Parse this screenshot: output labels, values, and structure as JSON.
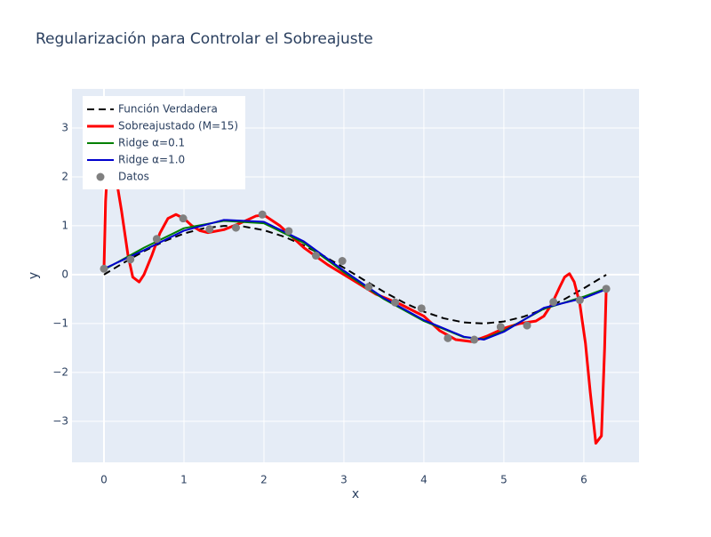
{
  "chart_data": {
    "type": "line",
    "title": "Regularización para Controlar el Sobreajuste",
    "xlabel": "x",
    "ylabel": "y",
    "xlim": [
      -0.4,
      6.69
    ],
    "ylim": [
      -3.84,
      3.8
    ],
    "xticks": [
      0,
      1,
      2,
      3,
      4,
      5,
      6
    ],
    "yticks": [
      {
        "value": -3,
        "label": "−3"
      },
      {
        "value": -2,
        "label": "−2"
      },
      {
        "value": -1,
        "label": "−1"
      },
      0,
      1,
      2,
      3
    ],
    "grid": true,
    "legend": "top-left",
    "series": [
      {
        "name": "Función Verdadera",
        "color": "#000000",
        "dash": true,
        "x": [
          0,
          0.25,
          0.5,
          0.75,
          1,
          1.25,
          1.5,
          1.75,
          2,
          2.25,
          2.5,
          2.75,
          3,
          3.25,
          3.5,
          3.75,
          4,
          4.25,
          4.5,
          4.75,
          5,
          5.25,
          5.5,
          5.75,
          6,
          6.25,
          6.28
        ],
        "values": [
          0,
          0.247,
          0.479,
          0.682,
          0.841,
          0.949,
          0.997,
          0.984,
          0.909,
          0.778,
          0.598,
          0.381,
          0.141,
          -0.108,
          -0.351,
          -0.572,
          -0.757,
          -0.894,
          -0.978,
          -0.999,
          -0.959,
          -0.859,
          -0.706,
          -0.51,
          -0.279,
          -0.033,
          -0.003
        ]
      },
      {
        "name": "Sobreajustado (M=15)",
        "color": "#ff0000",
        "width": 3,
        "x": [
          0,
          0.02,
          0.05,
          0.08,
          0.12,
          0.17,
          0.22,
          0.3,
          0.36,
          0.44,
          0.5,
          0.6,
          0.7,
          0.8,
          0.9,
          1.0,
          1.1,
          1.2,
          1.3,
          1.5,
          1.7,
          1.9,
          2.0,
          2.2,
          2.5,
          2.8,
          3.1,
          3.4,
          3.7,
          4.0,
          4.2,
          4.4,
          4.6,
          4.8,
          5.0,
          5.2,
          5.4,
          5.5,
          5.6,
          5.7,
          5.76,
          5.82,
          5.88,
          5.95,
          6.02,
          6.08,
          6.15,
          6.22,
          6.26,
          6.28
        ],
        "values": [
          0.1,
          1.5,
          2.4,
          2.6,
          2.3,
          1.8,
          1.3,
          0.4,
          -0.05,
          -0.15,
          0.0,
          0.4,
          0.85,
          1.15,
          1.23,
          1.15,
          1.0,
          0.9,
          0.86,
          0.92,
          1.05,
          1.2,
          1.22,
          1.0,
          0.55,
          0.2,
          -0.1,
          -0.4,
          -0.6,
          -0.85,
          -1.15,
          -1.33,
          -1.37,
          -1.25,
          -1.1,
          -1.0,
          -0.95,
          -0.85,
          -0.6,
          -0.25,
          -0.05,
          0.02,
          -0.15,
          -0.6,
          -1.4,
          -2.4,
          -3.45,
          -3.3,
          -1.5,
          -0.28
        ]
      },
      {
        "name": "Ridge α=0.1",
        "color": "#008000",
        "x": [
          0,
          0.5,
          1.0,
          1.5,
          2.0,
          2.5,
          3.0,
          3.5,
          4.0,
          4.5,
          4.75,
          5.0,
          5.5,
          6.0,
          6.28
        ],
        "values": [
          0.1,
          0.55,
          0.95,
          1.1,
          1.05,
          0.65,
          0.05,
          -0.5,
          -0.95,
          -1.28,
          -1.32,
          -1.15,
          -0.7,
          -0.45,
          -0.28
        ]
      },
      {
        "name": "Ridge α=1.0",
        "color": "#0000cd",
        "x": [
          0,
          0.5,
          1.0,
          1.5,
          2.0,
          2.5,
          3.0,
          3.5,
          4.0,
          4.5,
          4.75,
          5.0,
          5.5,
          6.0,
          6.28
        ],
        "values": [
          0.12,
          0.5,
          0.9,
          1.12,
          1.08,
          0.68,
          0.08,
          -0.48,
          -0.93,
          -1.27,
          -1.33,
          -1.17,
          -0.68,
          -0.48,
          -0.3
        ]
      },
      {
        "name": "Datos",
        "color": "#808080",
        "markers": true,
        "x": [
          0,
          0.33,
          0.66,
          0.99,
          1.32,
          1.65,
          1.98,
          2.31,
          2.65,
          2.98,
          3.31,
          3.64,
          3.97,
          4.3,
          4.63,
          4.96,
          5.29,
          5.62,
          5.95,
          6.28
        ],
        "values": [
          0.12,
          0.31,
          0.73,
          1.15,
          0.93,
          0.96,
          1.23,
          0.89,
          0.39,
          0.28,
          -0.25,
          -0.57,
          -0.69,
          -1.3,
          -1.33,
          -1.07,
          -1.04,
          -0.56,
          -0.52,
          -0.29
        ]
      }
    ]
  }
}
